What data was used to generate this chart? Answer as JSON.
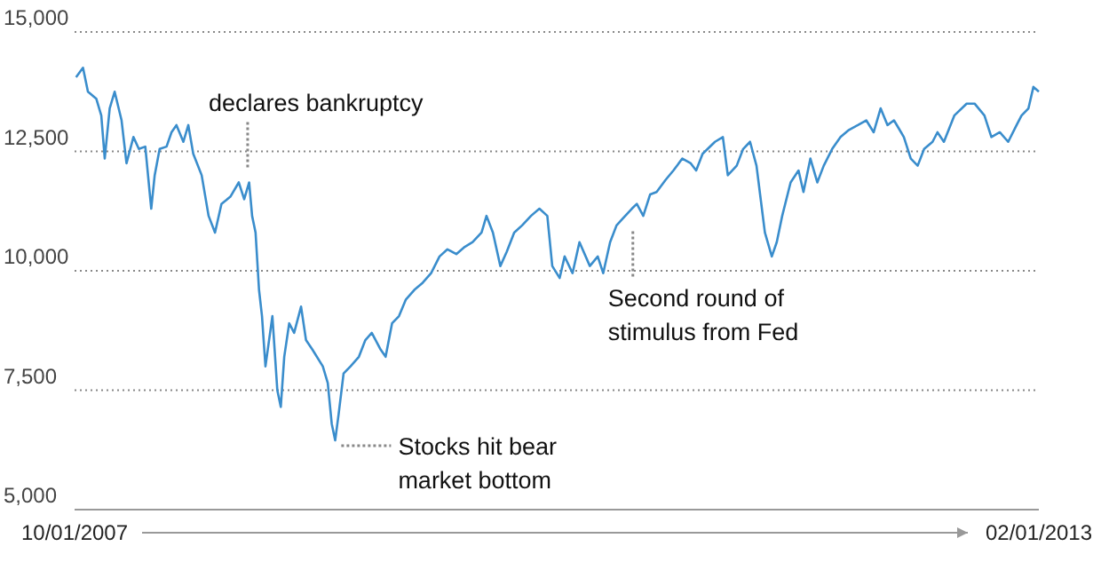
{
  "chart_data": {
    "type": "line",
    "x": [
      "2007-10-04",
      "2007-10-18",
      "2007-10-28",
      "2007-11-14",
      "2007-11-24",
      "2007-12-01",
      "2007-12-11",
      "2007-12-21",
      "2008-01-04",
      "2008-01-14",
      "2008-01-28",
      "2008-02-08",
      "2008-02-21",
      "2008-03-04",
      "2008-03-11",
      "2008-03-21",
      "2008-04-04",
      "2008-04-14",
      "2008-04-24",
      "2008-05-08",
      "2008-05-18",
      "2008-05-28",
      "2008-06-14",
      "2008-06-28",
      "2008-07-11",
      "2008-07-24",
      "2008-08-11",
      "2008-08-28",
      "2008-09-08",
      "2008-09-18",
      "2008-09-24",
      "2008-10-01",
      "2008-10-08",
      "2008-10-14",
      "2008-10-21",
      "2008-11-04",
      "2008-11-14",
      "2008-11-21",
      "2008-11-28",
      "2008-12-08",
      "2008-12-18",
      "2009-01-01",
      "2009-01-11",
      "2009-01-24",
      "2009-02-14",
      "2009-02-24",
      "2009-03-04",
      "2009-03-11",
      "2009-03-18",
      "2009-03-28",
      "2009-04-11",
      "2009-04-28",
      "2009-05-11",
      "2009-05-24",
      "2009-06-11",
      "2009-06-21",
      "2009-07-04",
      "2009-07-18",
      "2009-08-01",
      "2009-08-18",
      "2009-09-04",
      "2009-09-21",
      "2009-10-08",
      "2009-10-24",
      "2009-11-11",
      "2009-11-28",
      "2009-12-14",
      "2010-01-01",
      "2010-01-11",
      "2010-01-24",
      "2010-02-08",
      "2010-02-21",
      "2010-03-08",
      "2010-03-24",
      "2010-04-11",
      "2010-04-28",
      "2010-05-14",
      "2010-05-24",
      "2010-06-08",
      "2010-06-18",
      "2010-07-04",
      "2010-07-18",
      "2010-08-08",
      "2010-08-24",
      "2010-09-04",
      "2010-09-18",
      "2010-10-01",
      "2010-10-14",
      "2010-11-01",
      "2010-11-11",
      "2010-11-24",
      "2010-12-08",
      "2010-12-21",
      "2011-01-08",
      "2011-01-24",
      "2011-02-11",
      "2011-02-28",
      "2011-03-11",
      "2011-03-24",
      "2011-04-18",
      "2011-05-04",
      "2011-05-14",
      "2011-06-01",
      "2011-06-14",
      "2011-06-28",
      "2011-07-11",
      "2011-07-28",
      "2011-08-11",
      "2011-08-21",
      "2011-09-01",
      "2011-09-18",
      "2011-10-04",
      "2011-10-14",
      "2011-10-28",
      "2011-11-11",
      "2011-11-24",
      "2011-12-11",
      "2011-12-28",
      "2012-01-14",
      "2012-02-01",
      "2012-02-18",
      "2012-03-04",
      "2012-03-18",
      "2012-04-01",
      "2012-04-14",
      "2012-05-04",
      "2012-05-18",
      "2012-06-01",
      "2012-06-14",
      "2012-07-01",
      "2012-07-11",
      "2012-07-24",
      "2012-08-14",
      "2012-09-08",
      "2012-09-24",
      "2012-10-14",
      "2012-10-28",
      "2012-11-14",
      "2012-12-01",
      "2012-12-18",
      "2012-12-28",
      "2013-01-11",
      "2013-01-21",
      "2013-02-01"
    ],
    "series": [
      {
        "color": "#3a8dcc",
        "values": [
          14050,
          14250,
          13750,
          13600,
          13250,
          12350,
          13400,
          13750,
          13150,
          12250,
          12800,
          12550,
          12600,
          11300,
          12000,
          12550,
          12600,
          12900,
          13050,
          12700,
          13050,
          12450,
          12000,
          11150,
          10800,
          11400,
          11550,
          11850,
          11500,
          11850,
          11150,
          10800,
          9600,
          9050,
          8000,
          9050,
          7500,
          7150,
          8200,
          8900,
          8700,
          9250,
          8550,
          8350,
          8000,
          7650,
          6800,
          6450,
          7000,
          7850,
          8000,
          8200,
          8550,
          8700,
          8350,
          8200,
          8900,
          9050,
          9400,
          9600,
          9750,
          9950,
          10300,
          10450,
          10350,
          10500,
          10600,
          10800,
          11150,
          10800,
          10100,
          10400,
          10800,
          10950,
          11150,
          11300,
          11150,
          10100,
          9850,
          10300,
          9950,
          10600,
          10100,
          10300,
          9950,
          10600,
          10950,
          11100,
          11300,
          11400,
          11150,
          11600,
          11650,
          11900,
          12100,
          12350,
          12250,
          12100,
          12450,
          12700,
          12800,
          12000,
          12200,
          12550,
          12700,
          12200,
          10800,
          10300,
          10600,
          11150,
          11850,
          12100,
          11650,
          12350,
          11850,
          12200,
          12550,
          12800,
          12950,
          13050,
          13150,
          12900,
          13400,
          13050,
          13150,
          12800,
          12350,
          12200,
          12550,
          12700,
          12900,
          12700,
          13250,
          13500,
          13500,
          13250,
          12800,
          12900,
          12700,
          13050,
          13250,
          13400,
          13850,
          13750
        ]
      }
    ],
    "xlim": [
      "2007-10-01",
      "2013-02-01"
    ],
    "xticks": [
      {
        "value": "2007-10-01",
        "label": "10/01/2007"
      },
      {
        "value": "2013-02-01",
        "label": "02/01/2013"
      }
    ],
    "ylim": [
      5000,
      15000
    ],
    "yticks": [
      {
        "value": 5000,
        "label": "5,000"
      },
      {
        "value": 7500,
        "label": "7,500"
      },
      {
        "value": 10000,
        "label": "10,000"
      },
      {
        "value": 12500,
        "label": "12,500"
      },
      {
        "value": 15000,
        "label": "15,000"
      }
    ],
    "grid": "y",
    "annotations": [
      {
        "text": "declares bankruptcy",
        "x": "2008-09-15",
        "y": 12000
      },
      {
        "text": "Stocks hit bear market bottom",
        "x": "2009-03-09",
        "y": 6450
      },
      {
        "text": "Second round of stimulus from Fed",
        "x": "2010-11-03",
        "y": 11050
      }
    ]
  }
}
